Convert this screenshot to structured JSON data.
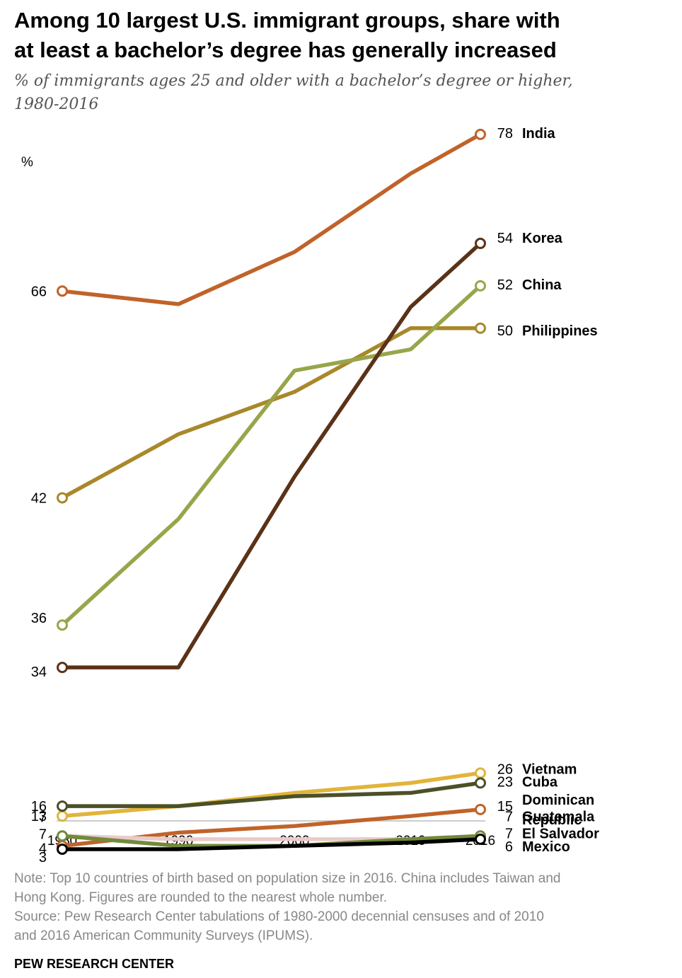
{
  "title_line1": "Among 10 largest U.S. immigrant groups, share with",
  "title_line2": "at least a bachelor’s degree has generally increased",
  "subtitle_line1": "% of immigrants ages 25 and older with a bachelor’s degree or higher,",
  "subtitle_line2": "1980-2016",
  "note_line1": "Note: Top 10 countries of birth based on population size in 2016. China includes Taiwan and",
  "note_line2": "Hong Kong. Figures are rounded to the nearest whole number.",
  "source_line1": "Source: Pew Research Center tabulations of 1980-2000 decennial censuses and of 2010",
  "source_line2": "and 2016 American Community Surveys (IPUMS).",
  "brand": "PEW RESEARCH CENTER",
  "chart_data": {
    "type": "line",
    "unit_label": "%",
    "x": [
      1980,
      1990,
      2000,
      2010,
      2016
    ],
    "x_tick_labels": [
      "1980",
      "1990",
      "2000",
      "2010",
      "2016"
    ],
    "panels": [
      {
        "ylim": [
          60,
          80
        ],
        "series": [
          {
            "name": "India",
            "color": "#c0632a",
            "values": [
              66,
              65,
              69,
              75,
              78
            ],
            "start_label": "66",
            "end_label": "78"
          }
        ]
      },
      {
        "ylim": [
          30,
          56
        ],
        "series": [
          {
            "name": "Philippines",
            "color": "#a9882a",
            "values": [
              42,
              45,
              47,
              50,
              50
            ],
            "start_label": "42",
            "end_label": "50"
          },
          {
            "name": "China",
            "color": "#98a54a",
            "values": [
              36,
              41,
              48,
              49,
              52
            ],
            "start_label": "36",
            "end_label": "52"
          },
          {
            "name": "Korea",
            "color": "#5b3217",
            "values": [
              34,
              34,
              43,
              51,
              54
            ],
            "start_label": "34",
            "end_label": "54"
          }
        ]
      },
      {
        "ylim": [
          0,
          28
        ],
        "series": [
          {
            "name": "Vietnam",
            "color": "#e1b43b",
            "values": [
              13,
              16,
              20,
              23,
              26
            ],
            "start_label": "13",
            "end_label": "26"
          },
          {
            "name": "Cuba",
            "color": "#4b5028",
            "values": [
              16,
              16,
              19,
              20,
              23
            ],
            "start_label": "16",
            "end_label": "23"
          },
          {
            "name": "Dominican Republic",
            "name_line1": "Dominican",
            "name_line2": "Republic",
            "color": "#c0632a",
            "values": [
              4,
              8,
              10,
              13,
              15
            ],
            "start_label": "4",
            "end_label": "15"
          },
          {
            "name": "Guatemala",
            "color": "#eacaca",
            "values": [
              7,
              6,
              6,
              6,
              7
            ],
            "start_label": "7",
            "end_label": "7"
          },
          {
            "name": "El Salvador",
            "color": "#728a3a",
            "values": [
              7,
              4,
              4,
              6,
              7
            ],
            "start_label": "7",
            "end_label": "7"
          },
          {
            "name": "Mexico",
            "color": "#000000",
            "values": [
              3,
              3,
              4,
              5,
              6
            ],
            "start_label": "3",
            "end_label": "6"
          }
        ]
      }
    ]
  }
}
